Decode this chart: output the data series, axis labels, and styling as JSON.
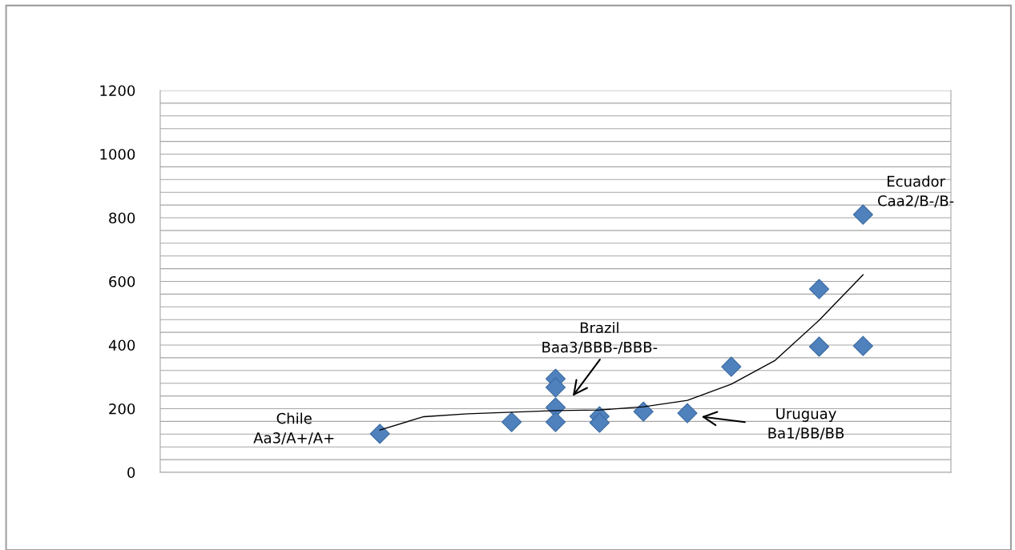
{
  "chart_data": {
    "type": "scatter",
    "categories": [
      null,
      null,
      null,
      null,
      null,
      null,
      null,
      null,
      null,
      null,
      null,
      null,
      null,
      null,
      null,
      null,
      null,
      null
    ],
    "series": [
      {
        "color": "#4f81bd",
        "values": [
          null,
          null,
          null,
          null,
          121,
          null,
          null,
          158,
          294,
          176,
          191,
          186,
          332,
          null,
          576,
          810,
          null,
          null
        ]
      },
      {
        "color": "#4f81bd",
        "values": [
          null,
          null,
          null,
          null,
          null,
          null,
          null,
          null,
          267,
          156,
          null,
          null,
          null,
          null,
          395,
          397,
          null,
          null
        ]
      },
      {
        "color": "#4f81bd",
        "values": [
          null,
          null,
          null,
          null,
          null,
          null,
          null,
          null,
          204,
          null,
          null,
          null,
          null,
          null,
          null,
          null,
          null,
          null
        ]
      },
      {
        "color": "#4f81bd",
        "values": [
          null,
          null,
          null,
          null,
          null,
          null,
          null,
          null,
          158,
          null,
          null,
          null,
          null,
          null,
          null,
          null,
          null,
          null
        ]
      },
      {
        "type": "line",
        "marker": "none",
        "color": "#000000",
        "values": [
          null,
          null,
          null,
          null,
          133,
          175,
          184,
          189,
          194,
          196,
          206,
          226,
          277,
          352,
          478,
          621,
          null,
          null
        ]
      }
    ],
    "marker": "diamond",
    "ylim": [
      0,
      1200
    ],
    "yticks": [
      0,
      {
        "value": 40,
        "label": null
      },
      {
        "value": 80,
        "label": null
      },
      {
        "value": 120,
        "label": null
      },
      {
        "value": 160,
        "label": null
      },
      200,
      {
        "value": 240,
        "label": null
      },
      {
        "value": 280,
        "label": null
      },
      {
        "value": 320,
        "label": null
      },
      {
        "value": 360,
        "label": null
      },
      400,
      {
        "value": 440,
        "label": null
      },
      {
        "value": 480,
        "label": null
      },
      {
        "value": 520,
        "label": null
      },
      {
        "value": 560,
        "label": null
      },
      600,
      {
        "value": 640,
        "label": null
      },
      {
        "value": 680,
        "label": null
      },
      {
        "value": 720,
        "label": null
      },
      {
        "value": 760,
        "label": null
      },
      800,
      {
        "value": 840,
        "label": null
      },
      {
        "value": 880,
        "label": null
      },
      {
        "value": 920,
        "label": null
      },
      {
        "value": 960,
        "label": null
      },
      1000,
      {
        "value": 1040,
        "label": null
      },
      {
        "value": 1080,
        "label": null
      },
      {
        "value": 1120,
        "label": null
      },
      {
        "value": 1160,
        "label": null
      },
      1200
    ],
    "grid": "y",
    "tick_labels": "y",
    "annotations": [
      "Chile\nAa3/A+/A+",
      "Brazil\nBaa3/BBB-/BBB-",
      "Uruguay\nBa1/BB/BB",
      "Ecuador\nCaa2/B-/B-"
    ]
  }
}
